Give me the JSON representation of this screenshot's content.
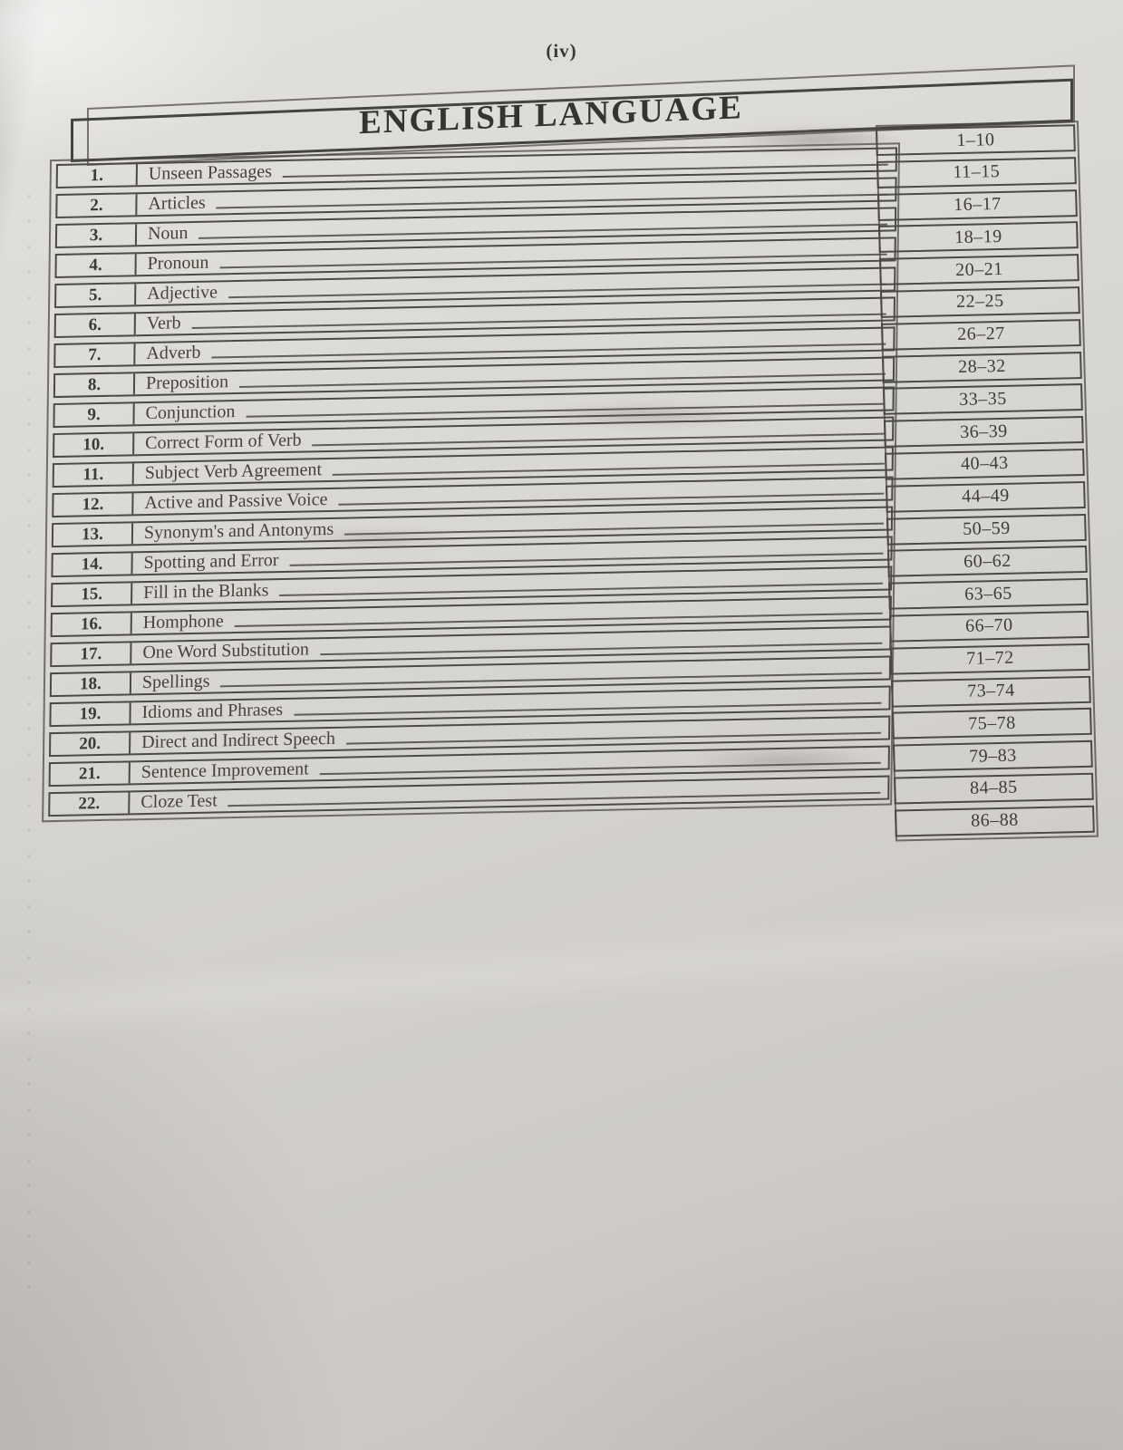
{
  "page": {
    "label": "(iv)",
    "title": "ENGLISH LANGUAGE"
  },
  "colors": {
    "paper": "#d6d4d1",
    "ink": "#3c3a36",
    "table_border": "#4c4a44"
  },
  "toc": {
    "entries": [
      {
        "num": "1.",
        "topic": "Unseen Passages",
        "pages": "1–10"
      },
      {
        "num": "2.",
        "topic": "Articles",
        "pages": "11–15"
      },
      {
        "num": "3.",
        "topic": "Noun",
        "pages": "16–17"
      },
      {
        "num": "4.",
        "topic": "Pronoun",
        "pages": "18–19"
      },
      {
        "num": "5.",
        "topic": "Adjective",
        "pages": "20–21"
      },
      {
        "num": "6.",
        "topic": "Verb",
        "pages": "22–25"
      },
      {
        "num": "7.",
        "topic": "Adverb",
        "pages": "26–27"
      },
      {
        "num": "8.",
        "topic": "Preposition",
        "pages": "28–32"
      },
      {
        "num": "9.",
        "topic": "Conjunction",
        "pages": "33–35"
      },
      {
        "num": "10.",
        "topic": "Correct Form of Verb",
        "pages": "36–39"
      },
      {
        "num": "11.",
        "topic": "Subject Verb Agreement",
        "pages": "40–43"
      },
      {
        "num": "12.",
        "topic": "Active and Passive Voice",
        "pages": "44–49"
      },
      {
        "num": "13.",
        "topic": "Synonym's and Antonyms",
        "pages": "50–59"
      },
      {
        "num": "14.",
        "topic": "Spotting and Error",
        "pages": "60–62"
      },
      {
        "num": "15.",
        "topic": "Fill in the Blanks",
        "pages": "63–65"
      },
      {
        "num": "16.",
        "topic": "Homphone",
        "pages": "66–70"
      },
      {
        "num": "17.",
        "topic": "One Word Substitution",
        "pages": "71–72"
      },
      {
        "num": "18.",
        "topic": "Spellings",
        "pages": "73–74"
      },
      {
        "num": "19.",
        "topic": "Idioms and Phrases",
        "pages": "75–78"
      },
      {
        "num": "20.",
        "topic": "Direct and Indirect Speech",
        "pages": "79–83"
      },
      {
        "num": "21.",
        "topic": "Sentence Improvement",
        "pages": "84–85"
      },
      {
        "num": "22.",
        "topic": "Cloze Test",
        "pages": "86–88"
      }
    ]
  }
}
